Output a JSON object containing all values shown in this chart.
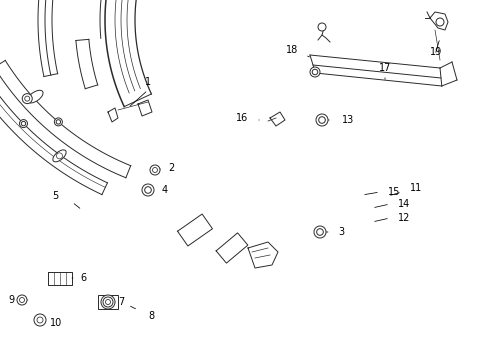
{
  "background_color": "#ffffff",
  "line_color": "#2a2a2a",
  "text_color": "#000000",
  "fig_width": 4.89,
  "fig_height": 3.6,
  "dpi": 100,
  "label_fontsize": 7.0,
  "lw": 0.7
}
